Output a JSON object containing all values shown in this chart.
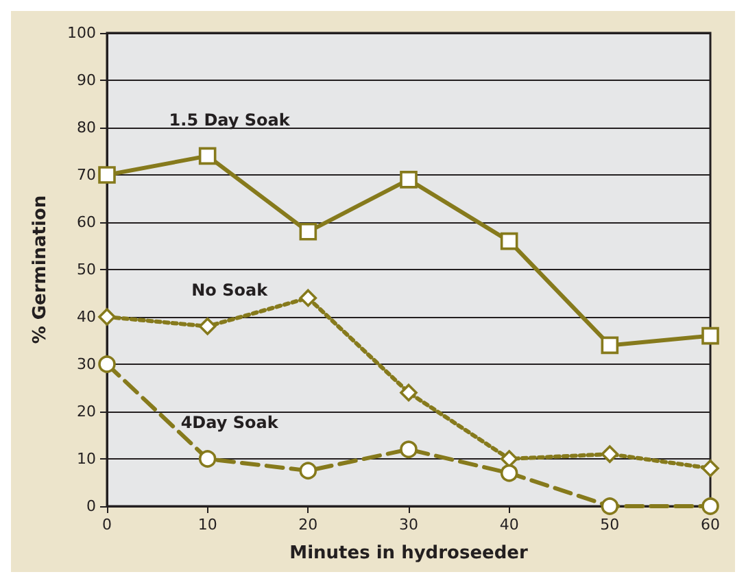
{
  "chart_data": {
    "type": "line",
    "xlabel": "Minutes in hydroseeder",
    "ylabel": "% Germination",
    "x": [
      0,
      10,
      20,
      30,
      40,
      50,
      60
    ],
    "series": [
      {
        "name": "1.5 Day Soak",
        "color": "#867a1c",
        "marker": "square",
        "line_style": "solid",
        "values": [
          70,
          74,
          58,
          69,
          56,
          34,
          36
        ]
      },
      {
        "name": "No Soak",
        "color": "#867a1c",
        "marker": "diamond",
        "line_style": "dotted",
        "values": [
          40,
          38,
          44,
          24,
          10,
          11,
          8
        ]
      },
      {
        "name": "4Day Soak",
        "color": "#867a1c",
        "marker": "circle",
        "line_style": "dashed",
        "values": [
          30,
          10,
          7.5,
          12,
          7,
          0,
          0
        ]
      }
    ],
    "xlim": [
      0,
      60
    ],
    "xticks": [
      0,
      10,
      20,
      30,
      40,
      50,
      60
    ],
    "ylim": [
      0,
      100
    ],
    "yticks": [
      0,
      10,
      20,
      30,
      40,
      50,
      60,
      70,
      80,
      90,
      100
    ],
    "grid": "y",
    "legend": false
  }
}
